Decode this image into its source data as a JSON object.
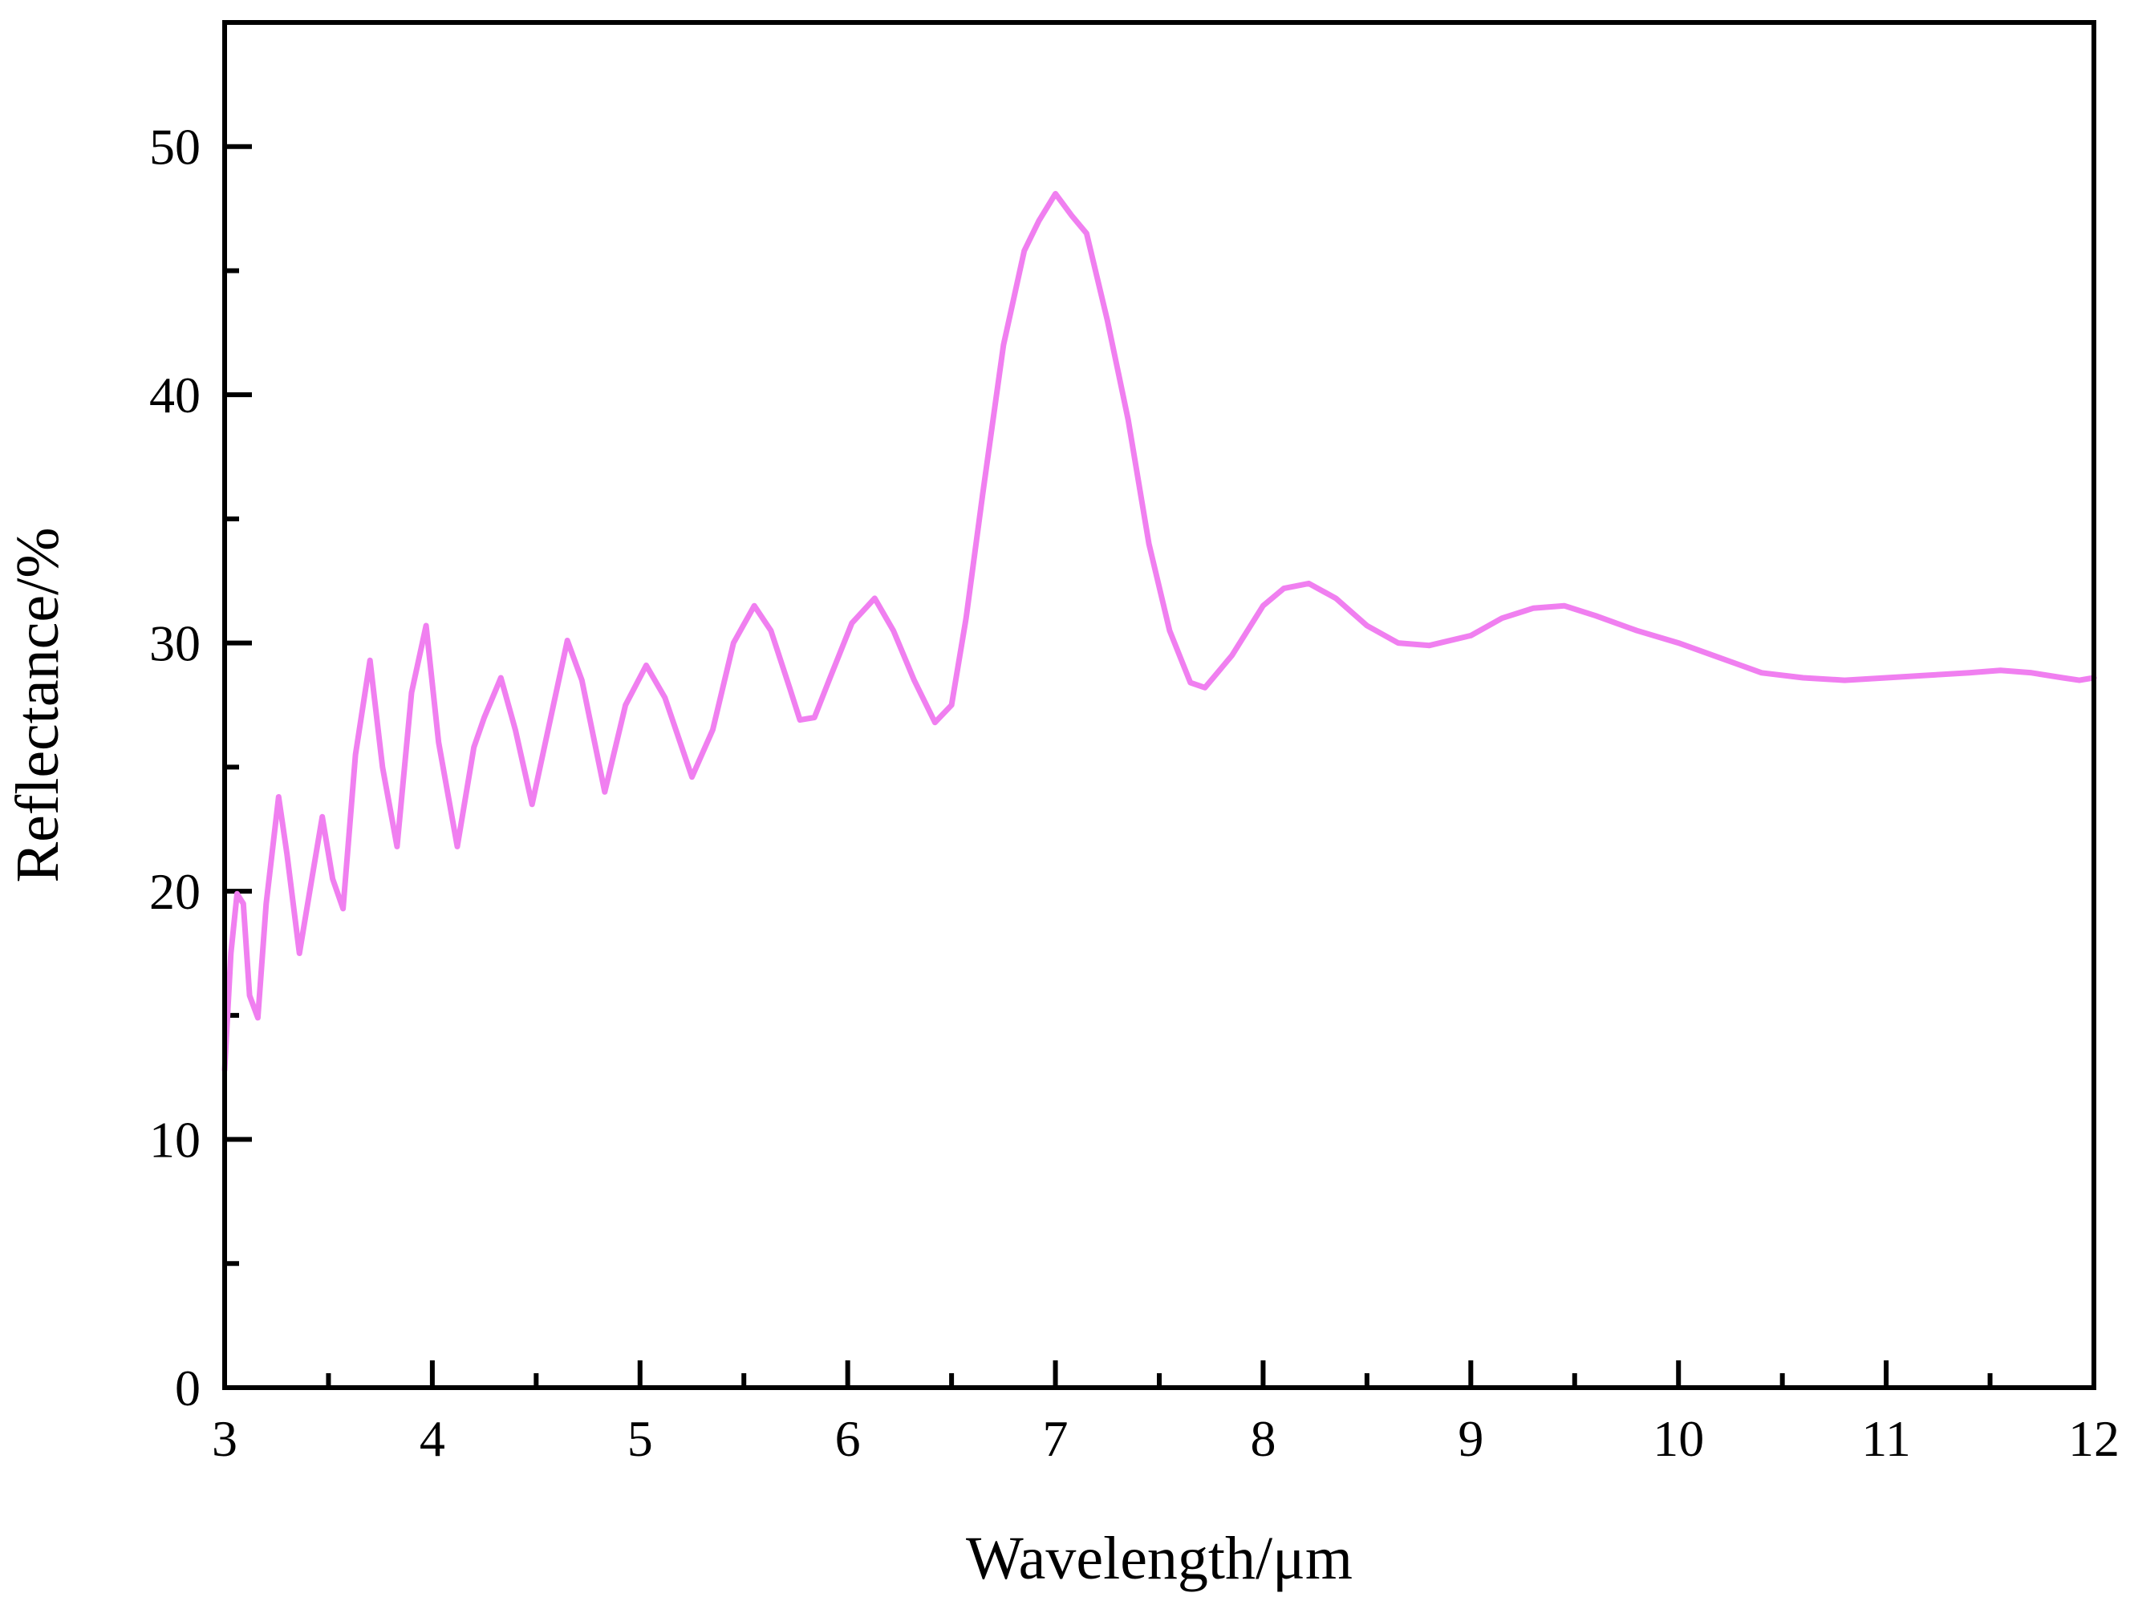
{
  "chart_data": {
    "type": "line",
    "title": "",
    "xlabel": "Wavelength/μm",
    "ylabel": "Reflectance/%",
    "xlim": [
      3,
      12
    ],
    "ylim": [
      0,
      55
    ],
    "xticks": [
      3,
      4,
      5,
      6,
      7,
      8,
      9,
      10,
      11,
      12
    ],
    "xtick_labels": [
      "3",
      "4",
      "5",
      "6",
      "7",
      "8",
      "9",
      "10",
      "11",
      "12"
    ],
    "xminor_ticks": [
      3.5,
      4.5,
      5.5,
      6.5,
      7.5,
      8.5,
      9.5,
      10.5,
      11.5
    ],
    "yticks": [
      0,
      10,
      20,
      30,
      40,
      50
    ],
    "ytick_labels": [
      "0",
      "10",
      "20",
      "30",
      "40",
      "50"
    ],
    "yminor_ticks": [
      5,
      15,
      25,
      35,
      45
    ],
    "grid": false,
    "legend": null,
    "series": [
      {
        "name": "Reflectance",
        "color": "#f07ff0",
        "points": [
          [
            3.0,
            12.8
          ],
          [
            3.03,
            17.5
          ],
          [
            3.06,
            19.9
          ],
          [
            3.09,
            19.5
          ],
          [
            3.12,
            15.8
          ],
          [
            3.16,
            14.9
          ],
          [
            3.2,
            19.5
          ],
          [
            3.26,
            23.8
          ],
          [
            3.3,
            21.5
          ],
          [
            3.36,
            17.5
          ],
          [
            3.42,
            20.5
          ],
          [
            3.47,
            23.0
          ],
          [
            3.52,
            20.5
          ],
          [
            3.57,
            19.3
          ],
          [
            3.63,
            25.5
          ],
          [
            3.7,
            29.3
          ],
          [
            3.76,
            25.0
          ],
          [
            3.83,
            21.8
          ],
          [
            3.9,
            28.0
          ],
          [
            3.97,
            30.7
          ],
          [
            4.03,
            26.0
          ],
          [
            4.12,
            21.8
          ],
          [
            4.2,
            25.8
          ],
          [
            4.25,
            27.0
          ],
          [
            4.33,
            28.6
          ],
          [
            4.4,
            26.5
          ],
          [
            4.48,
            23.5
          ],
          [
            4.57,
            27.0
          ],
          [
            4.65,
            30.1
          ],
          [
            4.72,
            28.5
          ],
          [
            4.83,
            24.0
          ],
          [
            4.93,
            27.5
          ],
          [
            5.03,
            29.1
          ],
          [
            5.12,
            27.8
          ],
          [
            5.25,
            24.6
          ],
          [
            5.35,
            26.5
          ],
          [
            5.45,
            30.0
          ],
          [
            5.55,
            31.5
          ],
          [
            5.63,
            30.5
          ],
          [
            5.72,
            28.2
          ],
          [
            5.77,
            26.9
          ],
          [
            5.84,
            27.0
          ],
          [
            5.91,
            28.5
          ],
          [
            6.02,
            30.8
          ],
          [
            6.13,
            31.8
          ],
          [
            6.22,
            30.5
          ],
          [
            6.32,
            28.5
          ],
          [
            6.42,
            26.8
          ],
          [
            6.5,
            27.5
          ],
          [
            6.57,
            31.0
          ],
          [
            6.65,
            36.0
          ],
          [
            6.75,
            42.0
          ],
          [
            6.85,
            45.8
          ],
          [
            6.92,
            47.0
          ],
          [
            7.0,
            48.1
          ],
          [
            7.08,
            47.2
          ],
          [
            7.15,
            46.5
          ],
          [
            7.25,
            43.0
          ],
          [
            7.35,
            39.0
          ],
          [
            7.45,
            34.0
          ],
          [
            7.55,
            30.5
          ],
          [
            7.65,
            28.4
          ],
          [
            7.72,
            28.2
          ],
          [
            7.85,
            29.5
          ],
          [
            8.0,
            31.5
          ],
          [
            8.1,
            32.2
          ],
          [
            8.22,
            32.4
          ],
          [
            8.35,
            31.8
          ],
          [
            8.5,
            30.7
          ],
          [
            8.65,
            30.0
          ],
          [
            8.8,
            29.9
          ],
          [
            9.0,
            30.3
          ],
          [
            9.15,
            31.0
          ],
          [
            9.3,
            31.4
          ],
          [
            9.45,
            31.5
          ],
          [
            9.6,
            31.1
          ],
          [
            9.8,
            30.5
          ],
          [
            10.0,
            30.0
          ],
          [
            10.2,
            29.4
          ],
          [
            10.4,
            28.8
          ],
          [
            10.6,
            28.6
          ],
          [
            10.8,
            28.5
          ],
          [
            11.0,
            28.6
          ],
          [
            11.2,
            28.7
          ],
          [
            11.4,
            28.8
          ],
          [
            11.55,
            28.9
          ],
          [
            11.7,
            28.8
          ],
          [
            11.85,
            28.6
          ],
          [
            11.93,
            28.5
          ],
          [
            12.0,
            28.6
          ]
        ]
      }
    ]
  }
}
